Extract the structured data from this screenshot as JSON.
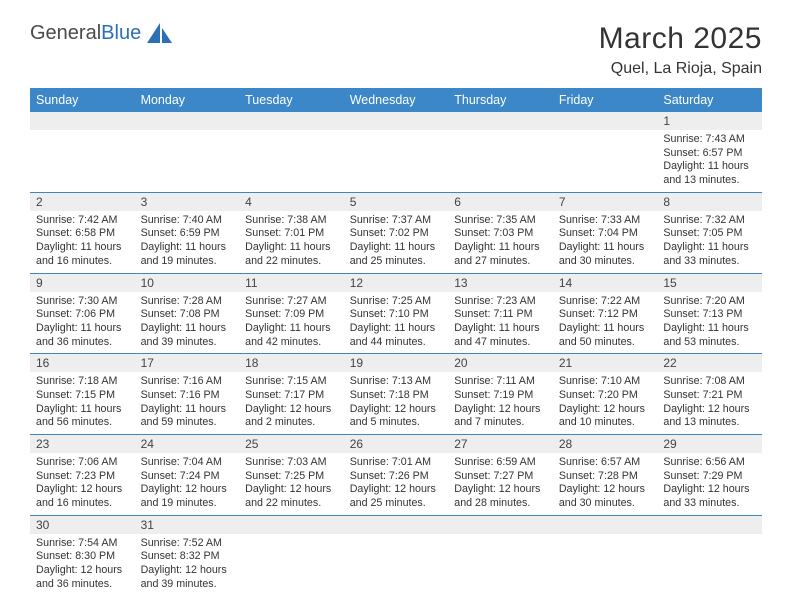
{
  "brand": {
    "name_a": "General",
    "name_b": "Blue"
  },
  "title": "March 2025",
  "location": "Quel, La Rioja, Spain",
  "colors": {
    "header_bg": "#3b87c8",
    "header_fg": "#ffffff",
    "daynum_bg": "#eeeeee",
    "cell_border": "#3b87c8",
    "text": "#333333",
    "brand_blue": "#2d6fb5"
  },
  "weekdays": [
    "Sunday",
    "Monday",
    "Tuesday",
    "Wednesday",
    "Thursday",
    "Friday",
    "Saturday"
  ],
  "weeks": [
    [
      null,
      null,
      null,
      null,
      null,
      null,
      {
        "n": "1",
        "sr": "7:43 AM",
        "ss": "6:57 PM",
        "dl": "11 hours and 13 minutes."
      }
    ],
    [
      {
        "n": "2",
        "sr": "7:42 AM",
        "ss": "6:58 PM",
        "dl": "11 hours and 16 minutes."
      },
      {
        "n": "3",
        "sr": "7:40 AM",
        "ss": "6:59 PM",
        "dl": "11 hours and 19 minutes."
      },
      {
        "n": "4",
        "sr": "7:38 AM",
        "ss": "7:01 PM",
        "dl": "11 hours and 22 minutes."
      },
      {
        "n": "5",
        "sr": "7:37 AM",
        "ss": "7:02 PM",
        "dl": "11 hours and 25 minutes."
      },
      {
        "n": "6",
        "sr": "7:35 AM",
        "ss": "7:03 PM",
        "dl": "11 hours and 27 minutes."
      },
      {
        "n": "7",
        "sr": "7:33 AM",
        "ss": "7:04 PM",
        "dl": "11 hours and 30 minutes."
      },
      {
        "n": "8",
        "sr": "7:32 AM",
        "ss": "7:05 PM",
        "dl": "11 hours and 33 minutes."
      }
    ],
    [
      {
        "n": "9",
        "sr": "7:30 AM",
        "ss": "7:06 PM",
        "dl": "11 hours and 36 minutes."
      },
      {
        "n": "10",
        "sr": "7:28 AM",
        "ss": "7:08 PM",
        "dl": "11 hours and 39 minutes."
      },
      {
        "n": "11",
        "sr": "7:27 AM",
        "ss": "7:09 PM",
        "dl": "11 hours and 42 minutes."
      },
      {
        "n": "12",
        "sr": "7:25 AM",
        "ss": "7:10 PM",
        "dl": "11 hours and 44 minutes."
      },
      {
        "n": "13",
        "sr": "7:23 AM",
        "ss": "7:11 PM",
        "dl": "11 hours and 47 minutes."
      },
      {
        "n": "14",
        "sr": "7:22 AM",
        "ss": "7:12 PM",
        "dl": "11 hours and 50 minutes."
      },
      {
        "n": "15",
        "sr": "7:20 AM",
        "ss": "7:13 PM",
        "dl": "11 hours and 53 minutes."
      }
    ],
    [
      {
        "n": "16",
        "sr": "7:18 AM",
        "ss": "7:15 PM",
        "dl": "11 hours and 56 minutes."
      },
      {
        "n": "17",
        "sr": "7:16 AM",
        "ss": "7:16 PM",
        "dl": "11 hours and 59 minutes."
      },
      {
        "n": "18",
        "sr": "7:15 AM",
        "ss": "7:17 PM",
        "dl": "12 hours and 2 minutes."
      },
      {
        "n": "19",
        "sr": "7:13 AM",
        "ss": "7:18 PM",
        "dl": "12 hours and 5 minutes."
      },
      {
        "n": "20",
        "sr": "7:11 AM",
        "ss": "7:19 PM",
        "dl": "12 hours and 7 minutes."
      },
      {
        "n": "21",
        "sr": "7:10 AM",
        "ss": "7:20 PM",
        "dl": "12 hours and 10 minutes."
      },
      {
        "n": "22",
        "sr": "7:08 AM",
        "ss": "7:21 PM",
        "dl": "12 hours and 13 minutes."
      }
    ],
    [
      {
        "n": "23",
        "sr": "7:06 AM",
        "ss": "7:23 PM",
        "dl": "12 hours and 16 minutes."
      },
      {
        "n": "24",
        "sr": "7:04 AM",
        "ss": "7:24 PM",
        "dl": "12 hours and 19 minutes."
      },
      {
        "n": "25",
        "sr": "7:03 AM",
        "ss": "7:25 PM",
        "dl": "12 hours and 22 minutes."
      },
      {
        "n": "26",
        "sr": "7:01 AM",
        "ss": "7:26 PM",
        "dl": "12 hours and 25 minutes."
      },
      {
        "n": "27",
        "sr": "6:59 AM",
        "ss": "7:27 PM",
        "dl": "12 hours and 28 minutes."
      },
      {
        "n": "28",
        "sr": "6:57 AM",
        "ss": "7:28 PM",
        "dl": "12 hours and 30 minutes."
      },
      {
        "n": "29",
        "sr": "6:56 AM",
        "ss": "7:29 PM",
        "dl": "12 hours and 33 minutes."
      }
    ],
    [
      {
        "n": "30",
        "sr": "7:54 AM",
        "ss": "8:30 PM",
        "dl": "12 hours and 36 minutes."
      },
      {
        "n": "31",
        "sr": "7:52 AM",
        "ss": "8:32 PM",
        "dl": "12 hours and 39 minutes."
      },
      null,
      null,
      null,
      null,
      null
    ]
  ],
  "labels": {
    "sunrise": "Sunrise: ",
    "sunset": "Sunset: ",
    "daylight": "Daylight: "
  }
}
